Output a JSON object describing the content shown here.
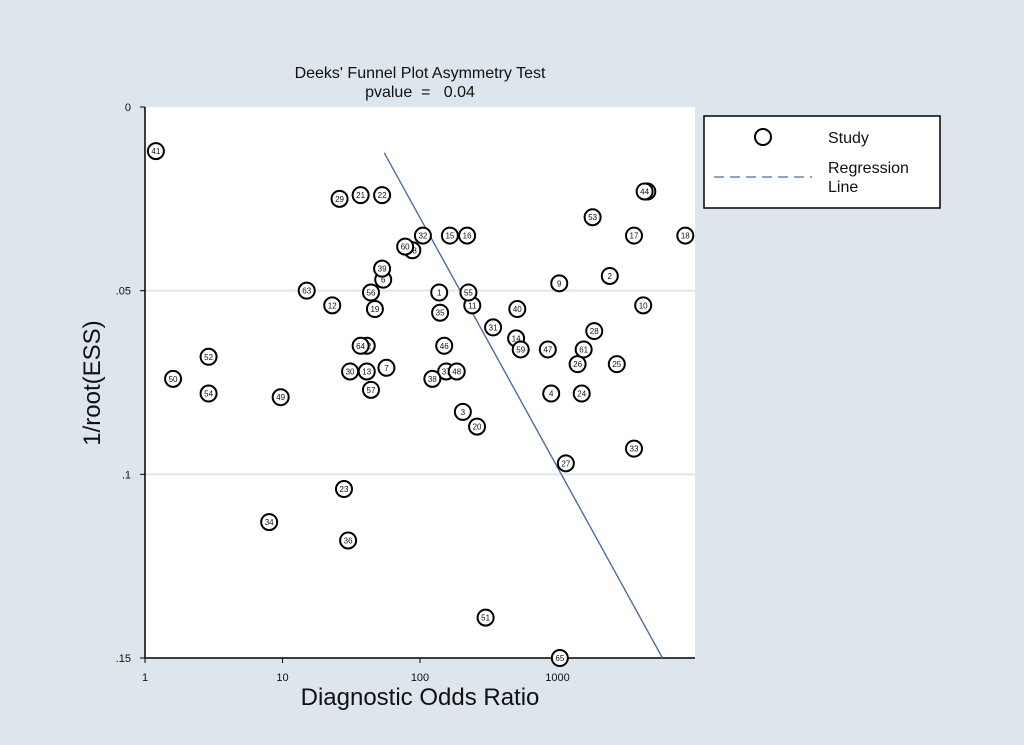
{
  "chart_data": {
    "type": "scatter",
    "title": "Deeks' Funnel Plot Asymmetry Test",
    "subtitle": "pvalue  =   0.04",
    "xlabel": "Diagnostic Odds Ratio",
    "ylabel": "1/root(ESS)",
    "x_scale": "log",
    "xlim": [
      1,
      10000
    ],
    "ylim": [
      0,
      0.15
    ],
    "y_reversed": true,
    "x_ticks": [
      1,
      10,
      100,
      1000
    ],
    "x_tick_labels": [
      "1",
      "10",
      "100",
      "1000"
    ],
    "y_ticks": [
      0,
      0.05,
      0.1,
      0.15
    ],
    "y_tick_labels": [
      "0",
      ".05",
      ".1",
      ".15"
    ],
    "grid": "horizontal",
    "legend_position": "right",
    "legend": {
      "study": "Study",
      "regression_line": [
        "Regression",
        "Line"
      ]
    },
    "series": [
      {
        "name": "Study",
        "points": [
          {
            "id": "1",
            "x": 138,
            "y": 0.0505
          },
          {
            "id": "2",
            "x": 2400,
            "y": 0.046
          },
          {
            "id": "3",
            "x": 205,
            "y": 0.083
          },
          {
            "id": "4",
            "x": 900,
            "y": 0.078
          },
          {
            "id": "6",
            "x": 54,
            "y": 0.047
          },
          {
            "id": "7",
            "x": 57,
            "y": 0.071
          },
          {
            "id": "9",
            "x": 1030,
            "y": 0.048
          },
          {
            "id": "10",
            "x": 4200,
            "y": 0.054
          },
          {
            "id": "11",
            "x": 240,
            "y": 0.054
          },
          {
            "id": "12",
            "x": 23,
            "y": 0.054
          },
          {
            "id": "13",
            "x": 41,
            "y": 0.072
          },
          {
            "id": "14",
            "x": 500,
            "y": 0.063
          },
          {
            "id": "15",
            "x": 165,
            "y": 0.035
          },
          {
            "id": "16",
            "x": 220,
            "y": 0.035
          },
          {
            "id": "17",
            "x": 3600,
            "y": 0.035
          },
          {
            "id": "18",
            "x": 8500,
            "y": 0.035
          },
          {
            "id": "19",
            "x": 47,
            "y": 0.055
          },
          {
            "id": "20",
            "x": 260,
            "y": 0.087
          },
          {
            "id": "21",
            "x": 37,
            "y": 0.024
          },
          {
            "id": "22",
            "x": 53,
            "y": 0.024
          },
          {
            "id": "23",
            "x": 28,
            "y": 0.104
          },
          {
            "id": "24",
            "x": 1500,
            "y": 0.078
          },
          {
            "id": "25",
            "x": 2700,
            "y": 0.07
          },
          {
            "id": "26",
            "x": 1400,
            "y": 0.07
          },
          {
            "id": "27",
            "x": 1150,
            "y": 0.097
          },
          {
            "id": "28",
            "x": 1850,
            "y": 0.061
          },
          {
            "id": "29",
            "x": 26,
            "y": 0.025
          },
          {
            "id": "30",
            "x": 31,
            "y": 0.072
          },
          {
            "id": "31",
            "x": 340,
            "y": 0.06
          },
          {
            "id": "32",
            "x": 105,
            "y": 0.035
          },
          {
            "id": "33",
            "x": 3600,
            "y": 0.093
          },
          {
            "id": "34",
            "x": 8,
            "y": 0.113
          },
          {
            "id": "35",
            "x": 140,
            "y": 0.056
          },
          {
            "id": "36",
            "x": 30,
            "y": 0.118
          },
          {
            "id": "37",
            "x": 155,
            "y": 0.072
          },
          {
            "id": "38",
            "x": 123,
            "y": 0.074
          },
          {
            "id": "39",
            "x": 53,
            "y": 0.044
          },
          {
            "id": "40",
            "x": 510,
            "y": 0.055
          },
          {
            "id": "41",
            "x": 1.2,
            "y": 0.012
          },
          {
            "id": "42",
            "x": 4500,
            "y": 0.023
          },
          {
            "id": "44",
            "x": 4300,
            "y": 0.023
          },
          {
            "id": "46",
            "x": 150,
            "y": 0.065
          },
          {
            "id": "47",
            "x": 850,
            "y": 0.066
          },
          {
            "id": "48",
            "x": 185,
            "y": 0.072
          },
          {
            "id": "49",
            "x": 9.7,
            "y": 0.079
          },
          {
            "id": "50",
            "x": 1.6,
            "y": 0.074
          },
          {
            "id": "51",
            "x": 300,
            "y": 0.139
          },
          {
            "id": "52",
            "x": 2.9,
            "y": 0.068
          },
          {
            "id": "53",
            "x": 1800,
            "y": 0.03
          },
          {
            "id": "54",
            "x": 2.9,
            "y": 0.078
          },
          {
            "id": "55",
            "x": 225,
            "y": 0.0505
          },
          {
            "id": "56",
            "x": 44,
            "y": 0.0505
          },
          {
            "id": "57",
            "x": 44,
            "y": 0.077
          },
          {
            "id": "58",
            "x": 88,
            "y": 0.039
          },
          {
            "id": "59",
            "x": 540,
            "y": 0.066
          },
          {
            "id": "60",
            "x": 78,
            "y": 0.038
          },
          {
            "id": "61",
            "x": 1550,
            "y": 0.066
          },
          {
            "id": "62",
            "x": 41,
            "y": 0.065
          },
          {
            "id": "63",
            "x": 15,
            "y": 0.05
          },
          {
            "id": "64",
            "x": 37,
            "y": 0.065
          },
          {
            "id": "65",
            "x": 1040,
            "y": 0.15
          }
        ]
      },
      {
        "name": "Regression Line",
        "line": [
          {
            "x": 55,
            "y": 0.0125
          },
          {
            "x": 5800,
            "y": 0.15
          }
        ]
      }
    ]
  }
}
